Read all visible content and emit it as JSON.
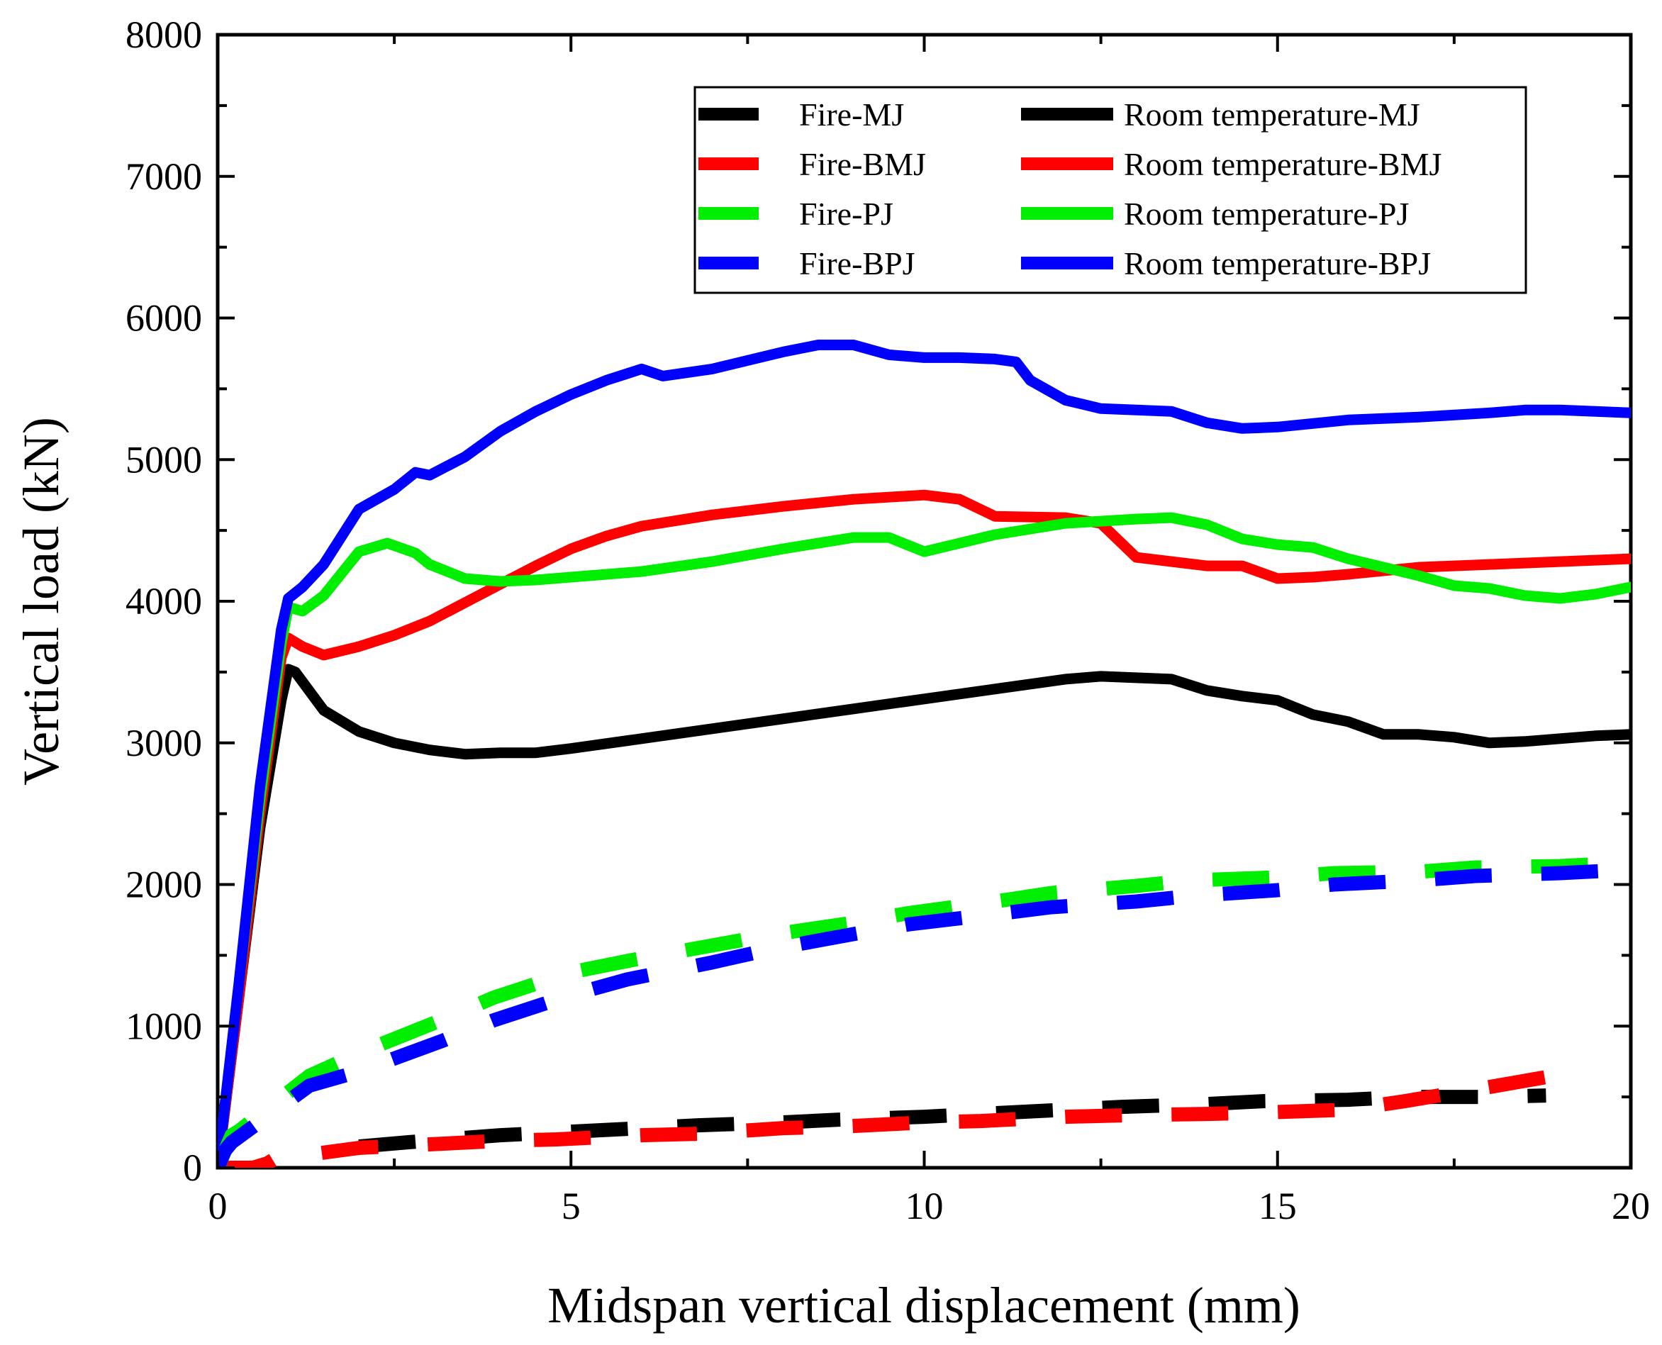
{
  "chart_data": {
    "type": "line",
    "title": "",
    "xlabel": "Midspan vertical displacement (mm)",
    "ylabel": "Vertical load (kN)",
    "xlim": [
      0,
      20
    ],
    "ylim": [
      0,
      8000
    ],
    "xticks": [
      0,
      5,
      10,
      15,
      20
    ],
    "yticks": [
      0,
      1000,
      2000,
      3000,
      4000,
      5000,
      6000,
      7000,
      8000
    ],
    "grid": false,
    "legend_position": "top-right",
    "series": [
      {
        "name": "Fire-MJ",
        "color": "#000000",
        "style": "dashed",
        "x": [
          2.0,
          2.7,
          4.0,
          4.8,
          6.0,
          6.8,
          8.0,
          8.8,
          10.0,
          10.8,
          12.0,
          12.8,
          14.0,
          14.8,
          16.0,
          16.8,
          18.0,
          18.8
        ],
        "y": [
          150,
          180,
          230,
          250,
          280,
          300,
          320,
          340,
          360,
          380,
          410,
          430,
          450,
          470,
          480,
          500,
          500,
          510
        ]
      },
      {
        "name": "Fire-BMJ",
        "color": "#ff0000",
        "style": "dashed",
        "x": [
          0.0,
          0.5,
          0.7,
          0.8,
          2.0,
          2.8,
          4.0,
          4.8,
          6.0,
          6.8,
          8.0,
          8.8,
          10.0,
          10.8,
          12.0,
          12.8,
          14.0,
          14.8,
          16.0,
          16.8,
          18.0,
          18.8
        ],
        "y": [
          0,
          0,
          30,
          60,
          140,
          160,
          190,
          200,
          230,
          240,
          280,
          290,
          320,
          330,
          360,
          370,
          380,
          390,
          410,
          470,
          570,
          640
        ]
      },
      {
        "name": "Fire-PJ",
        "color": "#00ee00",
        "style": "dashed",
        "x": [
          0.0,
          0.2,
          0.3,
          1.3,
          2.1,
          3.2,
          3.9,
          5.0,
          5.9,
          7.0,
          7.9,
          9.0,
          9.8,
          11.0,
          11.8,
          13.0,
          13.8,
          15.0,
          15.8,
          17.0,
          17.8,
          19.0,
          19.8
        ],
        "y": [
          0,
          230,
          260,
          650,
          830,
          1050,
          1200,
          1380,
          1470,
          1570,
          1650,
          1730,
          1800,
          1880,
          1940,
          1990,
          2030,
          2050,
          2080,
          2090,
          2120,
          2130,
          2150
        ]
      },
      {
        "name": "Fire-BPJ",
        "color": "#0000ff",
        "style": "dashed",
        "x": [
          0.0,
          0.1,
          0.2,
          1.3,
          2.0,
          3.2,
          3.9,
          5.0,
          5.8,
          7.0,
          7.8,
          9.0,
          9.8,
          11.0,
          11.8,
          13.0,
          13.8,
          15.0,
          15.8,
          17.0,
          17.8,
          19.0,
          19.8
        ],
        "y": [
          0,
          120,
          180,
          580,
          680,
          900,
          1040,
          1220,
          1330,
          1450,
          1540,
          1650,
          1720,
          1790,
          1840,
          1880,
          1920,
          1960,
          2000,
          2030,
          2060,
          2080,
          2100
        ]
      },
      {
        "name": "Room temperature-MJ",
        "color": "#000000",
        "style": "solid",
        "x": [
          0.0,
          0.3,
          0.6,
          0.9,
          1.0,
          1.1,
          1.5,
          2.0,
          2.5,
          3.0,
          3.5,
          4.0,
          4.5,
          5.0,
          6.0,
          7.0,
          8.0,
          9.0,
          10.0,
          11.0,
          12.0,
          12.5,
          13.0,
          13.5,
          14.0,
          14.5,
          15.0,
          15.5,
          16.0,
          16.5,
          17.0,
          17.5,
          18.0,
          18.5,
          19.0,
          19.5,
          20.0
        ],
        "y": [
          0,
          1200,
          2400,
          3300,
          3520,
          3500,
          3230,
          3080,
          3000,
          2950,
          2920,
          2930,
          2930,
          2960,
          3030,
          3100,
          3170,
          3240,
          3310,
          3380,
          3450,
          3470,
          3460,
          3450,
          3370,
          3330,
          3300,
          3200,
          3150,
          3060,
          3060,
          3040,
          3000,
          3010,
          3030,
          3050,
          3060
        ]
      },
      {
        "name": "Room temperature-BMJ",
        "color": "#ff0000",
        "style": "solid",
        "x": [
          0.0,
          0.3,
          0.6,
          0.9,
          1.0,
          1.2,
          1.5,
          2.0,
          2.5,
          3.0,
          3.5,
          4.0,
          4.5,
          5.0,
          5.5,
          6.0,
          7.0,
          8.0,
          9.0,
          10.0,
          10.5,
          11.0,
          12.0,
          12.5,
          13.0,
          14.0,
          14.5,
          15.0,
          15.5,
          16.0,
          17.0,
          18.0,
          19.0,
          20.0
        ],
        "y": [
          0,
          1200,
          2500,
          3600,
          3740,
          3680,
          3620,
          3680,
          3760,
          3860,
          3990,
          4120,
          4250,
          4370,
          4460,
          4530,
          4610,
          4670,
          4720,
          4750,
          4720,
          4600,
          4590,
          4550,
          4310,
          4250,
          4250,
          4160,
          4170,
          4190,
          4240,
          4260,
          4280,
          4300
        ]
      },
      {
        "name": "Room temperature-PJ",
        "color": "#00ee00",
        "style": "solid",
        "x": [
          0.0,
          0.3,
          0.6,
          0.9,
          1.0,
          1.2,
          1.5,
          2.0,
          2.4,
          2.8,
          3.0,
          3.5,
          4.0,
          4.5,
          5.0,
          6.0,
          7.0,
          8.0,
          9.0,
          9.5,
          10.0,
          11.0,
          12.0,
          13.0,
          13.5,
          14.0,
          14.5,
          15.0,
          15.5,
          16.0,
          17.0,
          17.5,
          18.0,
          18.5,
          19.0,
          19.5,
          20.0
        ],
        "y": [
          0,
          1300,
          2600,
          3700,
          3960,
          3930,
          4040,
          4350,
          4410,
          4340,
          4260,
          4160,
          4140,
          4150,
          4170,
          4210,
          4280,
          4370,
          4450,
          4450,
          4350,
          4470,
          4550,
          4580,
          4590,
          4540,
          4440,
          4400,
          4380,
          4300,
          4180,
          4110,
          4090,
          4040,
          4020,
          4050,
          4100
        ]
      },
      {
        "name": "Room temperature-BPJ",
        "color": "#0000ff",
        "style": "solid",
        "x": [
          0.0,
          0.3,
          0.6,
          0.9,
          1.0,
          1.2,
          1.5,
          2.0,
          2.5,
          2.8,
          3.0,
          3.5,
          4.0,
          4.5,
          5.0,
          5.5,
          6.0,
          6.3,
          7.0,
          8.0,
          8.5,
          9.0,
          9.5,
          10.0,
          10.5,
          11.0,
          11.3,
          11.5,
          12.0,
          12.5,
          13.0,
          13.5,
          14.0,
          14.5,
          15.0,
          16.0,
          17.0,
          18.0,
          18.5,
          19.0,
          19.5,
          20.0
        ],
        "y": [
          0,
          1300,
          2700,
          3800,
          4020,
          4100,
          4260,
          4650,
          4790,
          4910,
          4890,
          5020,
          5200,
          5340,
          5460,
          5560,
          5640,
          5590,
          5640,
          5760,
          5810,
          5810,
          5740,
          5720,
          5720,
          5710,
          5690,
          5560,
          5420,
          5360,
          5350,
          5340,
          5260,
          5220,
          5230,
          5280,
          5300,
          5330,
          5350,
          5350,
          5340,
          5330
        ]
      }
    ]
  }
}
